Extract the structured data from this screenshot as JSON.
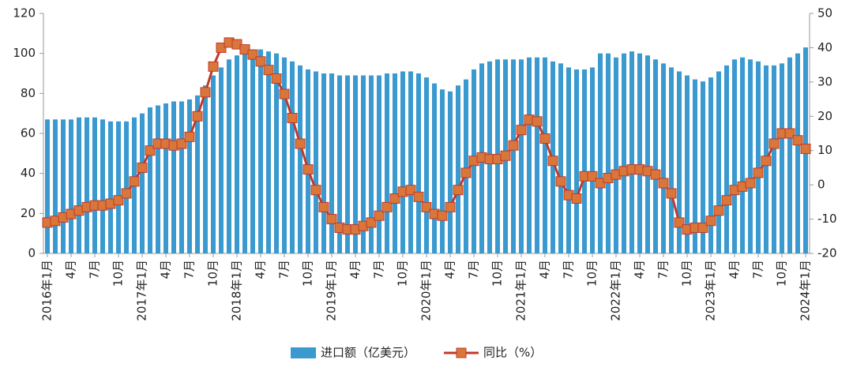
{
  "chart_data": {
    "type": "bar",
    "categories": [
      "2016年1月",
      null,
      null,
      "4月",
      null,
      null,
      "7月",
      null,
      null,
      "10月",
      null,
      null,
      "2017年1月",
      null,
      null,
      "4月",
      null,
      null,
      "7月",
      null,
      null,
      "10月",
      null,
      null,
      "2018年1月",
      null,
      null,
      "4月",
      null,
      null,
      "7月",
      null,
      null,
      "10月",
      null,
      null,
      "2019年1月",
      null,
      null,
      "4月",
      null,
      null,
      "7月",
      null,
      null,
      "10月",
      null,
      null,
      "2020年1月",
      null,
      null,
      "4月",
      null,
      null,
      "7月",
      null,
      null,
      "10月",
      null,
      null,
      "2021年1月",
      null,
      null,
      "4月",
      null,
      null,
      "7月",
      null,
      null,
      "10月",
      null,
      null,
      "2022年1月",
      null,
      null,
      "4月",
      null,
      null,
      "7月",
      null,
      null,
      "10月",
      null,
      null,
      "2023年1月",
      null,
      null,
      "4月",
      null,
      null,
      "7月",
      null,
      null,
      "10月",
      null,
      null,
      "2024年1月"
    ],
    "series": [
      {
        "name": "进口额（亿美元）",
        "type": "bar",
        "color": "#3a9ad0",
        "values": [
          67,
          67,
          67,
          67,
          68,
          68,
          68,
          67,
          66,
          66,
          66,
          68,
          70,
          73,
          74,
          75,
          76,
          76,
          77,
          79,
          84,
          89,
          93,
          97,
          99,
          101,
          102,
          102,
          101,
          100,
          98,
          96,
          94,
          92,
          91,
          90,
          90,
          89,
          89,
          89,
          89,
          89,
          89,
          90,
          90,
          91,
          91,
          90,
          88,
          85,
          82,
          81,
          84,
          87,
          92,
          95,
          96,
          97,
          97,
          97,
          97,
          98,
          98,
          98,
          96,
          95,
          93,
          92,
          92,
          93,
          100,
          100,
          98,
          100,
          101,
          100,
          99,
          97,
          95,
          93,
          91,
          89,
          87,
          86,
          88,
          91,
          94,
          97,
          98,
          97,
          96,
          94,
          94,
          95,
          98,
          100,
          103
        ]
      },
      {
        "name": "同比（%）",
        "type": "line",
        "axis": "y2",
        "color": "#c0392b",
        "marker_color": "#d9773a",
        "values": [
          -11,
          -10.5,
          -9.5,
          -8.5,
          -7.5,
          -6.5,
          -6,
          -6,
          -5.5,
          -4.5,
          -2.5,
          1,
          5,
          10,
          12,
          12,
          11.5,
          12,
          14,
          20,
          27,
          34.5,
          40,
          41.5,
          41,
          39.5,
          38,
          36,
          33.5,
          31,
          26.5,
          19.5,
          12,
          4.5,
          -1.5,
          -6.5,
          -10,
          -12.5,
          -13,
          -13,
          -12,
          -11,
          -9,
          -6.5,
          -4,
          -2,
          -1.5,
          -3.5,
          -6.5,
          -8.5,
          -9,
          -6.5,
          -1.5,
          3.5,
          7,
          8,
          7.5,
          7.5,
          8.5,
          11.5,
          16,
          19,
          18.5,
          13.5,
          7,
          1,
          -3,
          -4,
          2.5,
          2.5,
          0.5,
          2,
          3,
          4,
          4.5,
          4.5,
          4,
          3,
          0.5,
          -2.5,
          -11,
          -13,
          -12.5,
          -12.5,
          -10.5,
          -7.5,
          -4.5,
          -1.5,
          -0.5,
          0.5,
          3.5,
          7,
          12,
          15,
          15,
          13,
          10.5
        ]
      }
    ],
    "ylim": [
      0,
      120
    ],
    "yticks": [
      0,
      20,
      40,
      60,
      80,
      100,
      120
    ],
    "y2lim": [
      -20,
      50
    ],
    "y2ticks": [
      -20,
      -10,
      0,
      10,
      20,
      30,
      40,
      50
    ],
    "grid": false,
    "legend": "bottom"
  }
}
